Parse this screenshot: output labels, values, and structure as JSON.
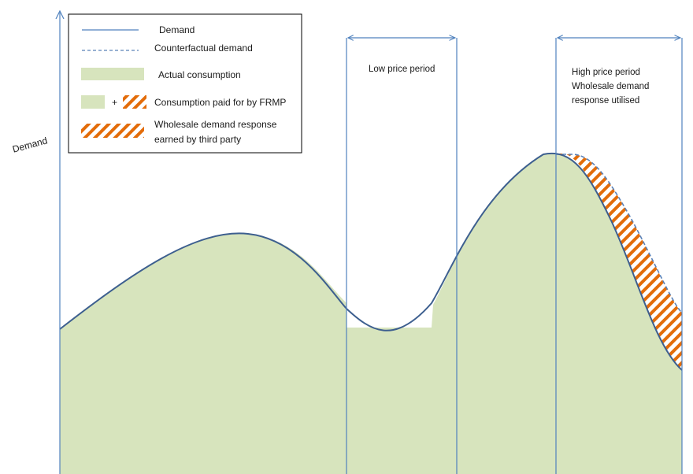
{
  "axis": {
    "y_label": "Demand"
  },
  "periods": [
    {
      "id": "low",
      "lines": [
        "Low price period"
      ]
    },
    {
      "id": "high",
      "lines": [
        "High price period",
        "Wholesale demand",
        "response utilised"
      ]
    }
  ],
  "legend": {
    "items": [
      {
        "id": "demand",
        "label": [
          "Demand"
        ]
      },
      {
        "id": "counterfactual",
        "label": [
          "Counterfactual demand"
        ]
      },
      {
        "id": "actual",
        "label": [
          "Actual consumption"
        ]
      },
      {
        "id": "frmp",
        "plus": "+",
        "label": [
          "Consumption paid for by FRMP"
        ]
      },
      {
        "id": "wdr",
        "label": [
          "Wholesale demand response",
          "earned by third party"
        ]
      }
    ]
  },
  "colors": {
    "demand_line": "#3d5f8f",
    "axis": "#4f81bd",
    "counterfactual_line": "#5a82b8",
    "consumption_fill": "#d7e4bd",
    "hatch": "#e36c09",
    "period_border": "#4f81bd",
    "text": "#1a1a1a"
  }
}
